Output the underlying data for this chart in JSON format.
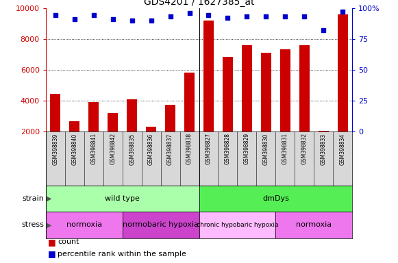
{
  "title": "GDS4201 / 1627385_at",
  "samples": [
    "GSM398839",
    "GSM398840",
    "GSM398841",
    "GSM398842",
    "GSM398835",
    "GSM398836",
    "GSM398837",
    "GSM398838",
    "GSM398827",
    "GSM398828",
    "GSM398829",
    "GSM398830",
    "GSM398831",
    "GSM398832",
    "GSM398833",
    "GSM398834"
  ],
  "counts": [
    4450,
    2650,
    3900,
    3200,
    4100,
    2300,
    3750,
    5800,
    9200,
    6850,
    7600,
    7100,
    7300,
    7600,
    2050,
    9600
  ],
  "percentiles": [
    94,
    91,
    94,
    91,
    90,
    90,
    93,
    96,
    94,
    92,
    93,
    93,
    93,
    93,
    82,
    97
  ],
  "ylim_left": [
    2000,
    10000
  ],
  "ylim_right": [
    0,
    100
  ],
  "yticks_left": [
    2000,
    4000,
    6000,
    8000,
    10000
  ],
  "yticks_right": [
    0,
    25,
    50,
    75,
    100
  ],
  "bar_color": "#cc0000",
  "dot_color": "#0000cc",
  "label_bg_color": "#d8d8d8",
  "strain_groups": [
    {
      "label": "wild type",
      "start": 0,
      "end": 8,
      "color": "#aaffaa"
    },
    {
      "label": "dmDys",
      "start": 8,
      "end": 16,
      "color": "#55ee55"
    }
  ],
  "stress_groups": [
    {
      "label": "normoxia",
      "start": 0,
      "end": 4,
      "color": "#ee77ee"
    },
    {
      "label": "normobaric hypoxia",
      "start": 4,
      "end": 8,
      "color": "#cc44cc"
    },
    {
      "label": "chronic hypobaric hypoxia",
      "start": 8,
      "end": 12,
      "color": "#ffbbff"
    },
    {
      "label": "normoxia",
      "start": 12,
      "end": 16,
      "color": "#ee77ee"
    }
  ],
  "bg_color": "#ffffff",
  "tick_label_color_left": "#cc0000",
  "tick_label_color_right": "#0000cc",
  "group_divider": 7.5,
  "n_samples": 16
}
